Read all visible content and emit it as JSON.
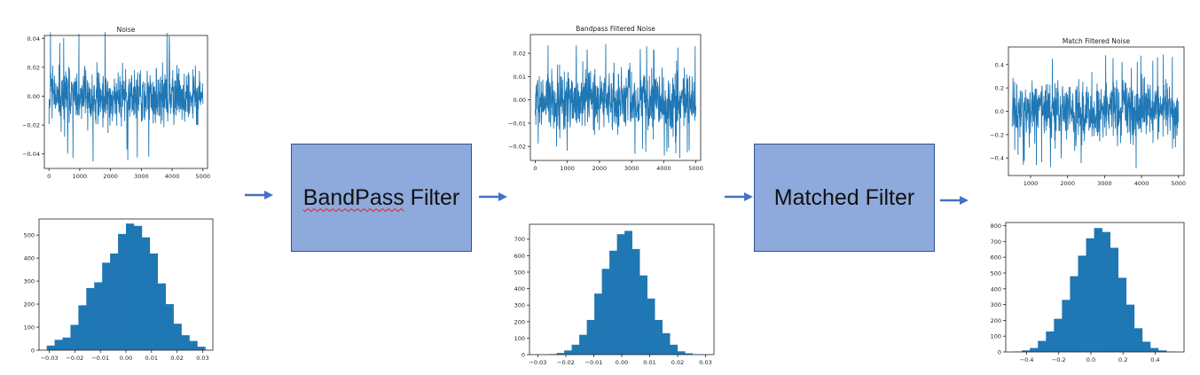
{
  "colors": {
    "series": "#1f77b4",
    "filter_fill": "#8ea9db",
    "filter_border": "#2f528f",
    "arrow": "#4472c4"
  },
  "filters": {
    "bandpass": {
      "word1": "BandPass",
      "word2": " Filter"
    },
    "matched": "Matched Filter"
  },
  "chart_data": [
    {
      "id": "noise_ts",
      "type": "line",
      "title": "Noise",
      "xlim": [
        -150,
        5150
      ],
      "ylim": [
        -0.05,
        0.042
      ],
      "xticks": [
        0,
        1000,
        2000,
        3000,
        4000,
        5000
      ],
      "yticks": [
        -0.04,
        -0.02,
        0.0,
        0.02,
        0.04
      ],
      "ytick_labels": [
        "−0.04",
        "−0.02",
        "0.00",
        "0.02",
        "0.04"
      ],
      "x_range": [
        0,
        5000
      ],
      "amplitude_sd": 0.0095,
      "amplitude_max": 0.046
    },
    {
      "id": "noise_hist",
      "type": "bar",
      "title": "",
      "xlim": [
        -0.034,
        0.034
      ],
      "ylim": [
        0,
        570
      ],
      "xticks": [
        -0.03,
        -0.02,
        -0.01,
        0.0,
        0.01,
        0.02,
        0.03
      ],
      "yticks": [
        0,
        100,
        200,
        300,
        400,
        500
      ],
      "xtick_labels": [
        "−0.03",
        "−0.02",
        "−0.01",
        "0.00",
        "0.01",
        "0.02",
        "0.03"
      ],
      "bin_range": [
        -0.031,
        0.031
      ],
      "values": [
        20,
        45,
        55,
        110,
        195,
        270,
        295,
        380,
        420,
        505,
        550,
        540,
        490,
        420,
        290,
        200,
        115,
        65,
        40,
        15
      ]
    },
    {
      "id": "bp_ts",
      "type": "line",
      "title": "Bandpass Filtered Noise",
      "xlim": [
        -150,
        5150
      ],
      "ylim": [
        -0.026,
        0.028
      ],
      "xticks": [
        0,
        1000,
        2000,
        3000,
        4000,
        5000
      ],
      "yticks": [
        -0.02,
        -0.01,
        0.0,
        0.01,
        0.02
      ],
      "ytick_labels": [
        "−0.02",
        "−0.01",
        "0.00",
        "0.01",
        "0.02"
      ],
      "x_range": [
        0,
        5000
      ],
      "amplitude_sd": 0.0065,
      "amplitude_max": 0.025
    },
    {
      "id": "bp_hist",
      "type": "bar",
      "title": "",
      "xlim": [
        -0.033,
        0.033
      ],
      "ylim": [
        0,
        790
      ],
      "xticks": [
        -0.03,
        -0.02,
        -0.01,
        0.0,
        0.01,
        0.02,
        0.03
      ],
      "yticks": [
        0,
        100,
        200,
        300,
        400,
        500,
        600,
        700
      ],
      "xtick_labels": [
        "−0.03",
        "−0.02",
        "−0.01",
        "0.00",
        "0.01",
        "0.02",
        "0.03"
      ],
      "bin_range": [
        -0.026,
        0.028
      ],
      "values": [
        3,
        10,
        25,
        60,
        120,
        210,
        370,
        520,
        630,
        730,
        750,
        640,
        480,
        340,
        210,
        130,
        60,
        20,
        8,
        2
      ]
    },
    {
      "id": "mf_ts",
      "type": "line",
      "title": "Match Filtered Noise",
      "xlim": [
        400,
        5150
      ],
      "ylim": [
        -0.55,
        0.55
      ],
      "xticks": [
        1000,
        2000,
        3000,
        4000,
        5000
      ],
      "yticks": [
        -0.4,
        -0.2,
        0.0,
        0.2,
        0.4
      ],
      "ytick_labels": [
        "−0.4",
        "−0.2",
        "0.0",
        "0.2",
        "0.4"
      ],
      "x_range": [
        500,
        5000
      ],
      "amplitude_sd": 0.13,
      "amplitude_max": 0.5
    },
    {
      "id": "mf_hist",
      "type": "bar",
      "title": "",
      "xlim": [
        -0.53,
        0.58
      ],
      "ylim": [
        0,
        820
      ],
      "xticks": [
        -0.4,
        -0.2,
        0.0,
        0.2,
        0.4
      ],
      "yticks": [
        0,
        100,
        200,
        300,
        400,
        500,
        600,
        700,
        800
      ],
      "xtick_labels": [
        "−0.4",
        "−0.2",
        "0.0",
        "0.2",
        "0.4"
      ],
      "bin_range": [
        -0.48,
        0.52
      ],
      "values": [
        3,
        10,
        25,
        70,
        130,
        210,
        330,
        480,
        610,
        720,
        785,
        760,
        660,
        470,
        300,
        150,
        65,
        25,
        10,
        3
      ]
    }
  ]
}
